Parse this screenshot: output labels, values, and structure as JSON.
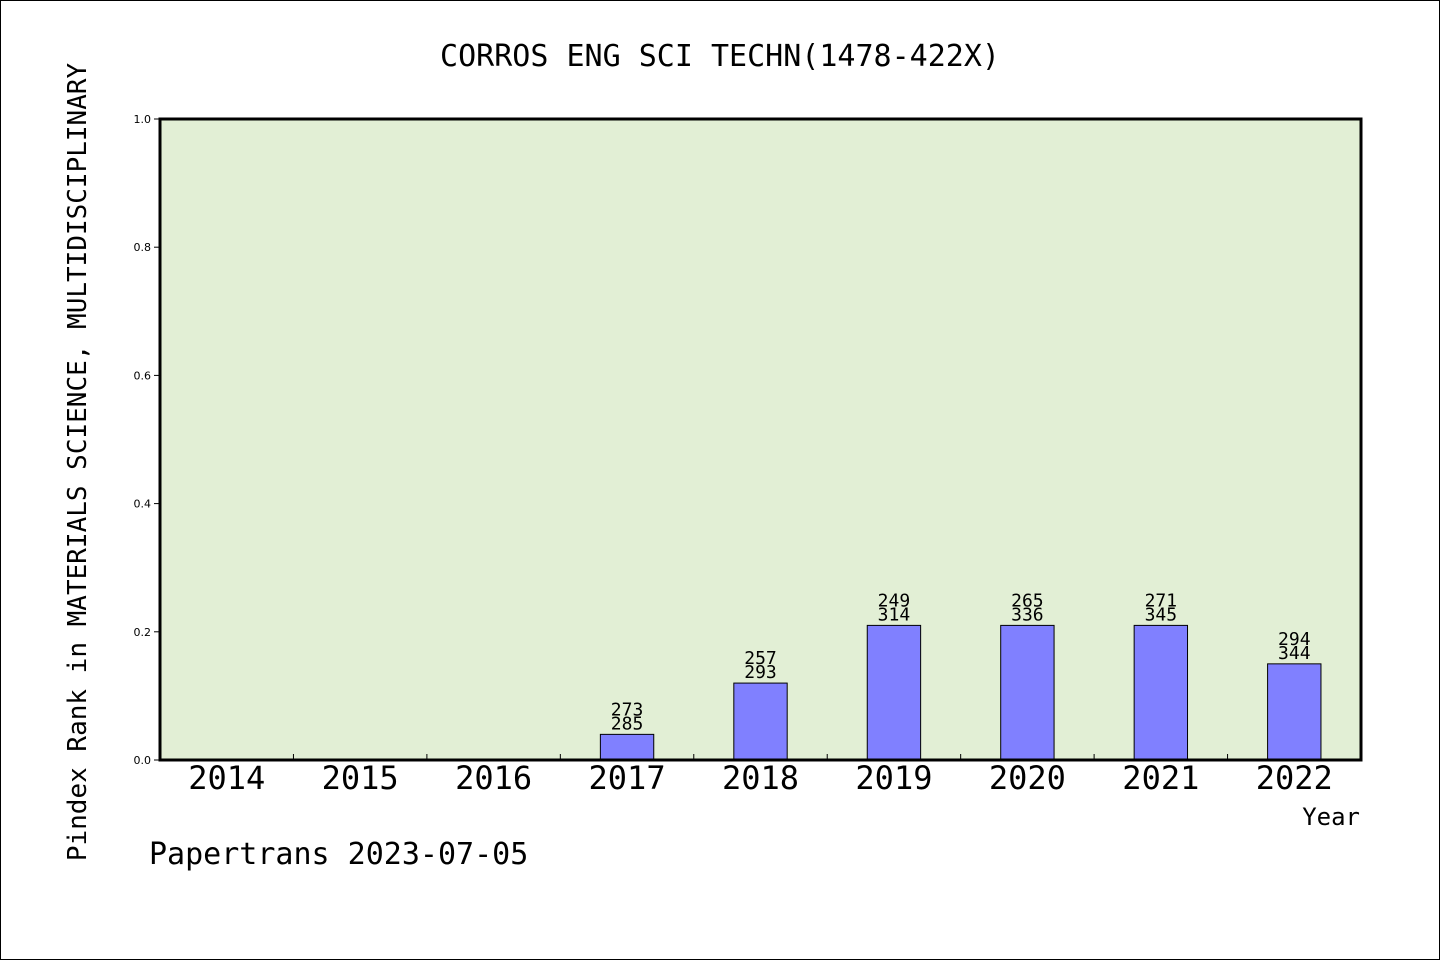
{
  "chart_data": {
    "type": "bar",
    "title": "CORROS ENG SCI TECHN(1478-422X)",
    "xlabel": "Year",
    "ylabel": "Pindex Rank in MATERIALS SCIENCE, MULTIDISCIPLINARY",
    "ylim": [
      0,
      1.0
    ],
    "yticks": [
      "0.0",
      "0.2",
      "0.4",
      "0.6",
      "0.8",
      "1.0"
    ],
    "categories": [
      "2014",
      "2015",
      "2016",
      "2017",
      "2018",
      "2019",
      "2020",
      "2021",
      "2022"
    ],
    "values": [
      0,
      0,
      0,
      0.04,
      0.12,
      0.21,
      0.21,
      0.21,
      0.15
    ],
    "rank_labels": [
      "",
      "",
      "",
      "273",
      "257",
      "249",
      "265",
      "271",
      "294"
    ],
    "total_labels": [
      "",
      "",
      "",
      "285",
      "293",
      "314",
      "336",
      "345",
      "344"
    ],
    "bar_color": "#8080ff",
    "plot_background": "#e2efd5",
    "grid": false
  },
  "footer": {
    "text": "Papertrans 2023-07-05"
  }
}
